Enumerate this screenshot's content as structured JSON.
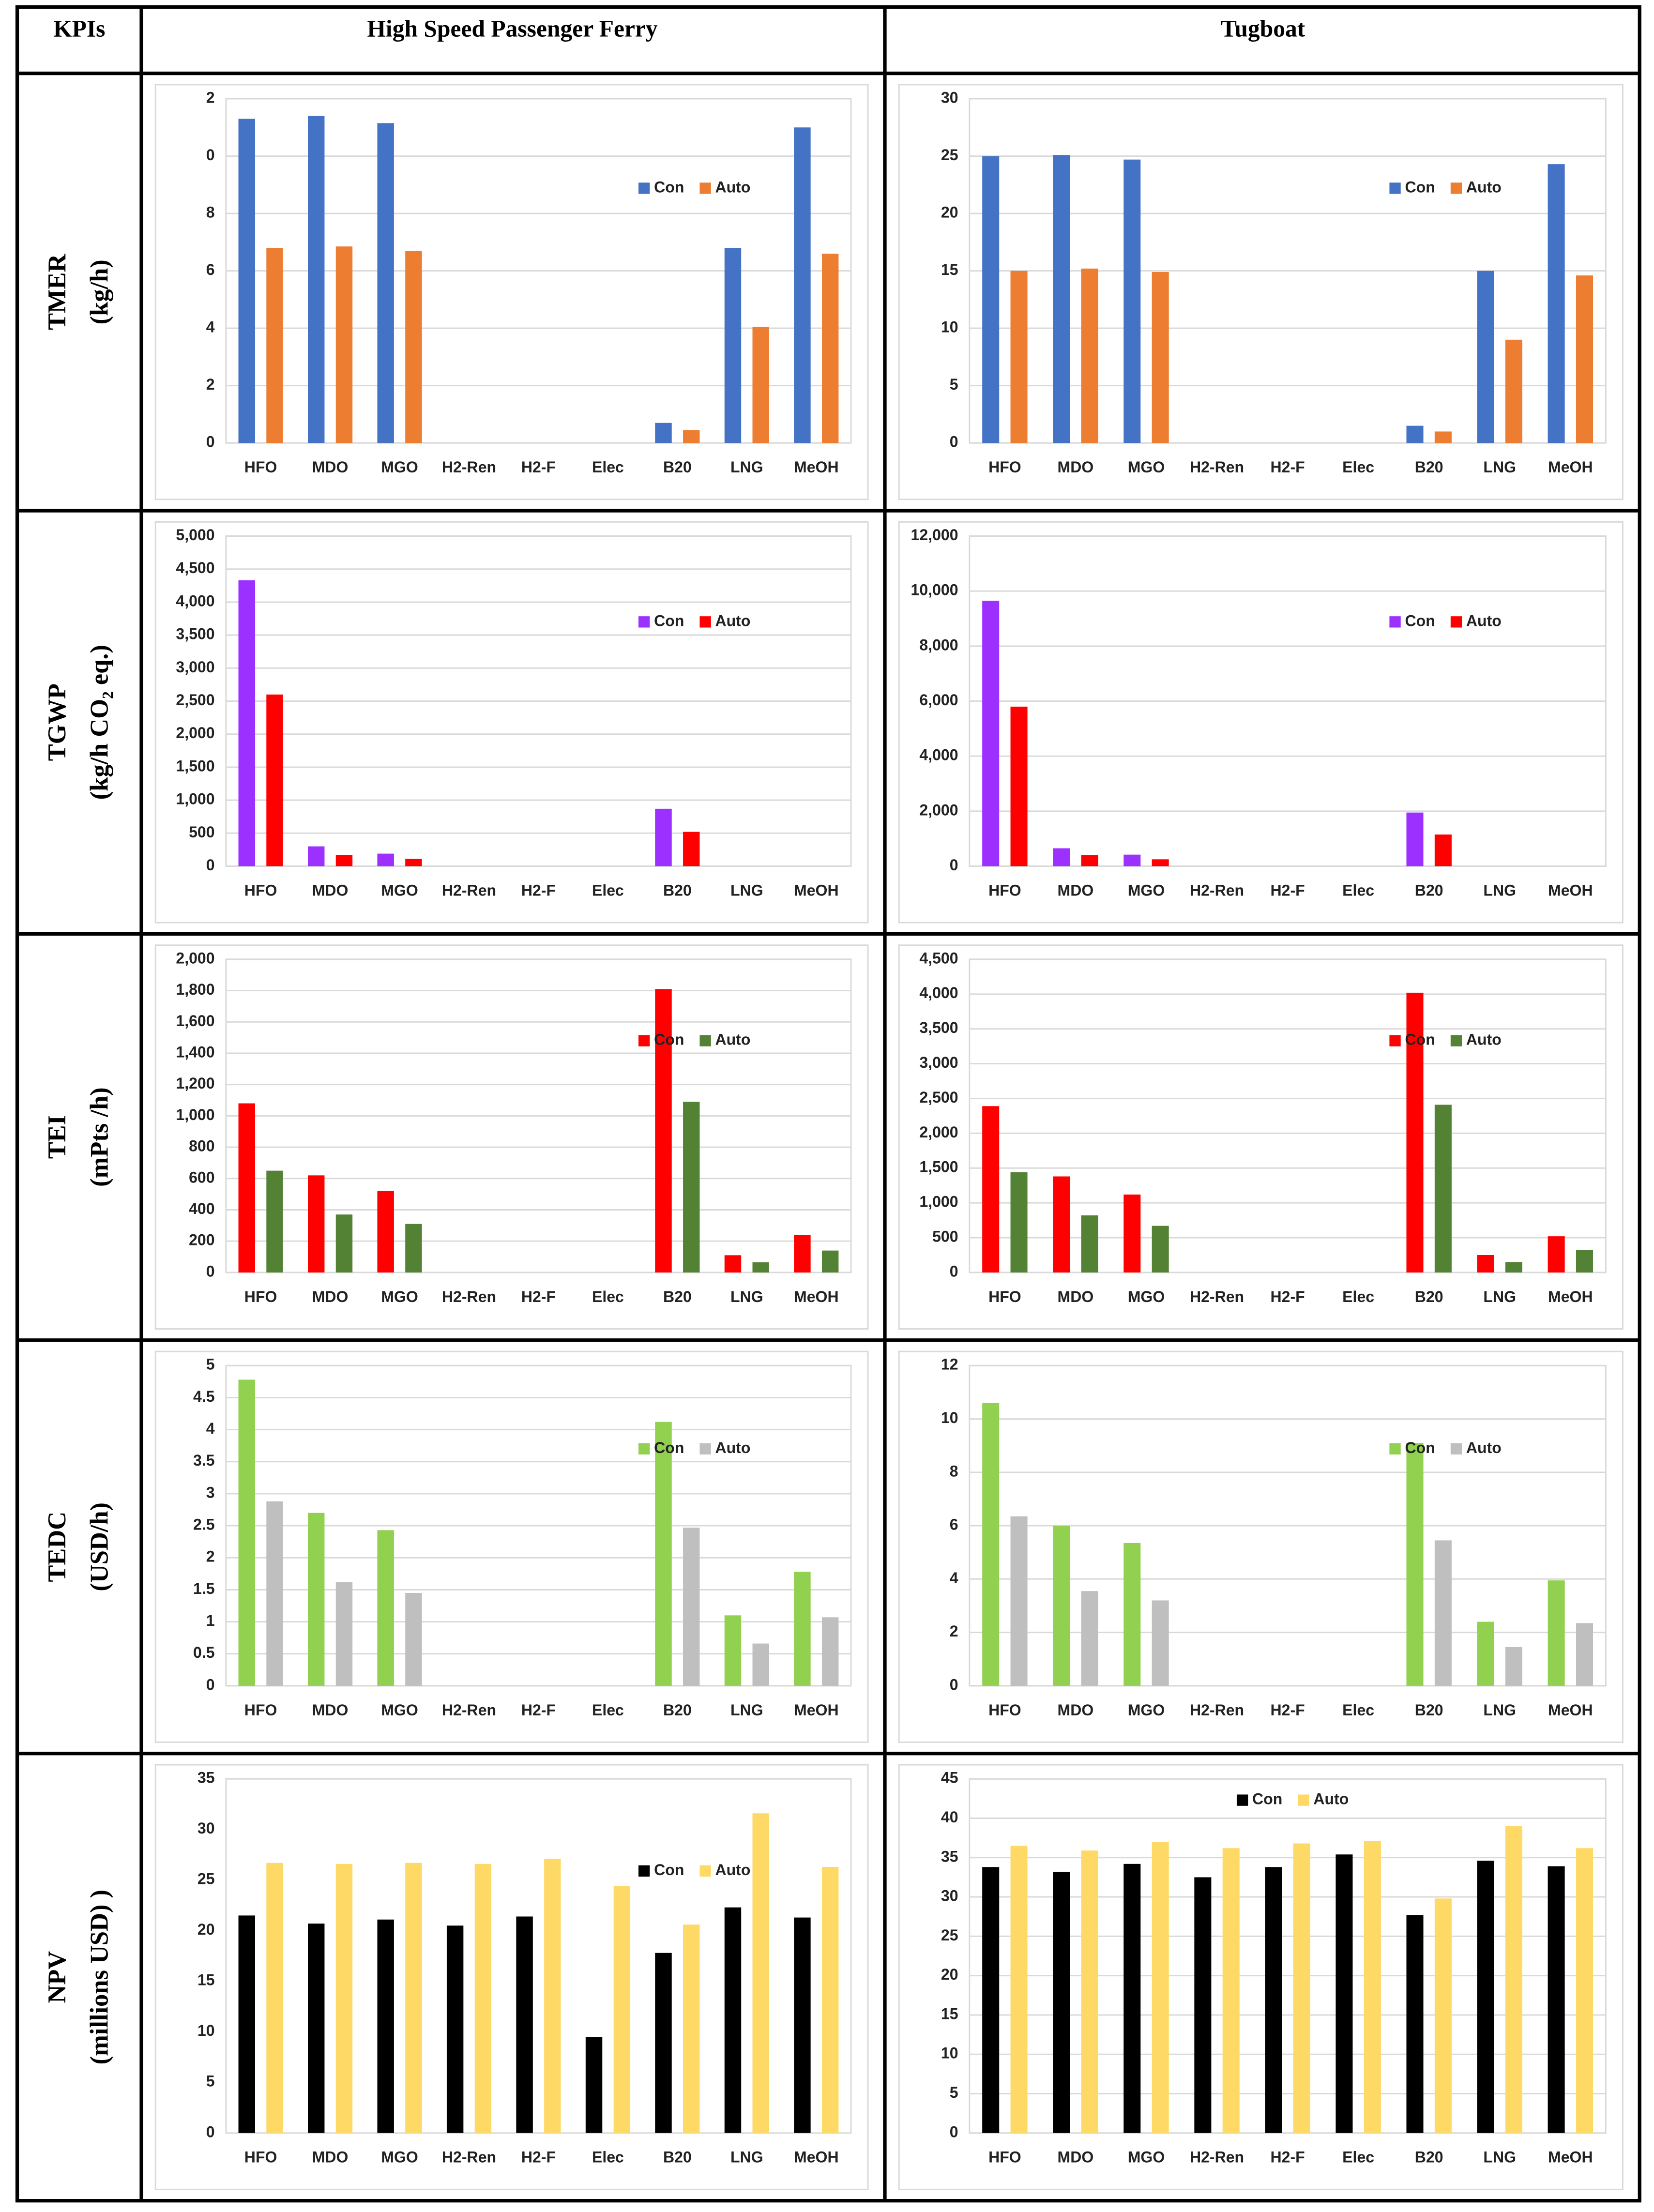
{
  "table": {
    "header": [
      "KPIs",
      "High Speed Passenger Ferry",
      "Tugboat"
    ],
    "rows": [
      {
        "kpi": "TMER",
        "unit": "(kg/h)"
      },
      {
        "kpi": "TGWP",
        "unit": "(kg/h CO₂ eq.)"
      },
      {
        "kpi": "TEI",
        "unit": "(mPts /h)"
      },
      {
        "kpi": "TEDC",
        "unit": "(USD/h)"
      },
      {
        "kpi": "NPV",
        "unit": "(millions USD) )"
      }
    ]
  },
  "chart_data": [
    {
      "type": "bar",
      "categories": [
        "HFO",
        "MDO",
        "MGO",
        "H2-Ren",
        "H2-F",
        "Elec",
        "B20",
        "LNG",
        "MeOH"
      ],
      "series": [
        {
          "name": "Con",
          "color": "#4472c4",
          "values": [
            11.3,
            11.4,
            11.15,
            0,
            0,
            0,
            0.7,
            6.8,
            11.0
          ]
        },
        {
          "name": "Auto",
          "color": "#ed7d31",
          "values": [
            6.8,
            6.85,
            6.7,
            0,
            0,
            0,
            0.45,
            4.05,
            6.6
          ]
        }
      ],
      "ylim": [
        0,
        12
      ],
      "yticks": [
        0,
        2,
        4,
        6,
        8,
        {
          "value": 10,
          "label": "0"
        },
        {
          "value": 12,
          "label": "2"
        }
      ],
      "grid": true,
      "legend": "upper right"
    },
    {
      "type": "bar",
      "categories": [
        "HFO",
        "MDO",
        "MGO",
        "H2-Ren",
        "H2-F",
        "Elec",
        "B20",
        "LNG",
        "MeOH"
      ],
      "series": [
        {
          "name": "Con",
          "color": "#4472c4",
          "values": [
            25,
            25.1,
            24.7,
            0,
            0,
            0,
            1.5,
            15,
            24.3
          ]
        },
        {
          "name": "Auto",
          "color": "#ed7d31",
          "values": [
            15,
            15.2,
            14.9,
            0,
            0,
            0,
            1.0,
            9,
            14.6
          ]
        }
      ],
      "ylim": [
        0,
        30
      ],
      "yticks": [
        0,
        5,
        10,
        15,
        20,
        25,
        30
      ],
      "grid": true,
      "legend": "upper right"
    },
    {
      "type": "bar",
      "categories": [
        "HFO",
        "MDO",
        "MGO",
        "H2-Ren",
        "H2-F",
        "Elec",
        "B20",
        "LNG",
        "MeOH"
      ],
      "series": [
        {
          "name": "Con",
          "color": "#9b30ff",
          "values": [
            4330,
            300,
            190,
            0,
            0,
            0,
            870,
            0,
            0
          ]
        },
        {
          "name": "Auto",
          "color": "#ff0000",
          "values": [
            2600,
            170,
            110,
            0,
            0,
            0,
            520,
            0,
            0
          ]
        }
      ],
      "ylim": [
        0,
        5000
      ],
      "yticks": [
        0,
        500,
        {
          "value": 1000,
          "label": "1,000"
        },
        {
          "value": 1500,
          "label": "1,500"
        },
        {
          "value": 2000,
          "label": "2,000"
        },
        {
          "value": 2500,
          "label": "2,500"
        },
        {
          "value": 3000,
          "label": "3,000"
        },
        {
          "value": 3500,
          "label": "3,500"
        },
        {
          "value": 4000,
          "label": "4,000"
        },
        {
          "value": 4500,
          "label": "4,500"
        },
        {
          "value": 5000,
          "label": "5,000"
        }
      ],
      "grid": true,
      "legend": "upper right"
    },
    {
      "type": "bar",
      "categories": [
        "HFO",
        "MDO",
        "MGO",
        "H2-Ren",
        "H2-F",
        "Elec",
        "B20",
        "LNG",
        "MeOH"
      ],
      "series": [
        {
          "name": "Con",
          "color": "#9b30ff",
          "values": [
            9650,
            650,
            420,
            0,
            0,
            0,
            1950,
            0,
            0
          ]
        },
        {
          "name": "Auto",
          "color": "#ff0000",
          "values": [
            5800,
            400,
            250,
            0,
            0,
            0,
            1150,
            0,
            0
          ]
        }
      ],
      "ylim": [
        0,
        12000
      ],
      "yticks": [
        0,
        {
          "value": 2000,
          "label": "2,000"
        },
        {
          "value": 4000,
          "label": "4,000"
        },
        {
          "value": 6000,
          "label": "6,000"
        },
        {
          "value": 8000,
          "label": "8,000"
        },
        {
          "value": 10000,
          "label": "10,000"
        },
        {
          "value": 12000,
          "label": "12,000"
        }
      ],
      "grid": true,
      "legend": "upper right"
    },
    {
      "type": "bar",
      "categories": [
        "HFO",
        "MDO",
        "MGO",
        "H2-Ren",
        "H2-F",
        "Elec",
        "B20",
        "LNG",
        "MeOH"
      ],
      "series": [
        {
          "name": "Con",
          "color": "#ff0000",
          "values": [
            1080,
            620,
            520,
            0,
            0,
            0,
            1810,
            110,
            240
          ]
        },
        {
          "name": "Auto",
          "color": "#548235",
          "values": [
            650,
            370,
            310,
            0,
            0,
            0,
            1090,
            65,
            140
          ]
        }
      ],
      "ylim": [
        0,
        2000
      ],
      "yticks": [
        0,
        200,
        400,
        600,
        800,
        {
          "value": 1000,
          "label": "1,000"
        },
        {
          "value": 1200,
          "label": "1,200"
        },
        {
          "value": 1400,
          "label": "1,400"
        },
        {
          "value": 1600,
          "label": "1,600"
        },
        {
          "value": 1800,
          "label": "1,800"
        },
        {
          "value": 2000,
          "label": "2,000"
        }
      ],
      "grid": true,
      "legend": "upper right"
    },
    {
      "type": "bar",
      "categories": [
        "HFO",
        "MDO",
        "MGO",
        "H2-Ren",
        "H2-F",
        "Elec",
        "B20",
        "LNG",
        "MeOH"
      ],
      "series": [
        {
          "name": "Con",
          "color": "#ff0000",
          "values": [
            2390,
            1380,
            1120,
            0,
            0,
            0,
            4020,
            250,
            520
          ]
        },
        {
          "name": "Auto",
          "color": "#548235",
          "values": [
            1440,
            820,
            670,
            0,
            0,
            0,
            2410,
            150,
            320
          ]
        }
      ],
      "ylim": [
        0,
        4500
      ],
      "yticks": [
        0,
        500,
        {
          "value": 1000,
          "label": "1,000"
        },
        {
          "value": 1500,
          "label": "1,500"
        },
        {
          "value": 2000,
          "label": "2,000"
        },
        {
          "value": 2500,
          "label": "2,500"
        },
        {
          "value": 3000,
          "label": "3,000"
        },
        {
          "value": 3500,
          "label": "3,500"
        },
        {
          "value": 4000,
          "label": "4,000"
        },
        {
          "value": 4500,
          "label": "4,500"
        }
      ],
      "grid": true,
      "legend": "upper right"
    },
    {
      "type": "bar",
      "categories": [
        "HFO",
        "MDO",
        "MGO",
        "H2-Ren",
        "H2-F",
        "Elec",
        "B20",
        "LNG",
        "MeOH"
      ],
      "series": [
        {
          "name": "Con",
          "color": "#92d050",
          "values": [
            4.78,
            2.7,
            2.43,
            0,
            0,
            0,
            4.12,
            1.1,
            1.78
          ]
        },
        {
          "name": "Auto",
          "color": "#bfbfbf",
          "values": [
            2.88,
            1.62,
            1.45,
            0,
            0,
            0,
            2.47,
            0.66,
            1.07
          ]
        }
      ],
      "ylim": [
        0,
        5
      ],
      "yticks": [
        0,
        0.5,
        1,
        1.5,
        2,
        2.5,
        3,
        3.5,
        4,
        4.5,
        5
      ],
      "grid": true,
      "legend": "upper right"
    },
    {
      "type": "bar",
      "categories": [
        "HFO",
        "MDO",
        "MGO",
        "H2-Ren",
        "H2-F",
        "Elec",
        "B20",
        "LNG",
        "MeOH"
      ],
      "series": [
        {
          "name": "Con",
          "color": "#92d050",
          "values": [
            10.6,
            6.0,
            5.35,
            0,
            0,
            0,
            9.1,
            2.4,
            3.95
          ]
        },
        {
          "name": "Auto",
          "color": "#bfbfbf",
          "values": [
            6.35,
            3.55,
            3.2,
            0,
            0,
            0,
            5.45,
            1.45,
            2.35
          ]
        }
      ],
      "ylim": [
        0,
        12
      ],
      "yticks": [
        0,
        2,
        4,
        6,
        8,
        10,
        12
      ],
      "grid": true,
      "legend": "upper right"
    },
    {
      "type": "bar",
      "categories": [
        "HFO",
        "MDO",
        "MGO",
        "H2-Ren",
        "H2-F",
        "Elec",
        "B20",
        "LNG",
        "MeOH"
      ],
      "series": [
        {
          "name": "Con",
          "color": "#000000",
          "values": [
            21.5,
            20.7,
            21.1,
            20.5,
            21.4,
            9.5,
            17.8,
            22.3,
            21.3
          ]
        },
        {
          "name": "Auto",
          "color": "#ffd966",
          "values": [
            26.7,
            26.6,
            26.7,
            26.6,
            27.1,
            24.4,
            20.6,
            31.6,
            26.3
          ]
        }
      ],
      "ylim": [
        0,
        35
      ],
      "yticks": [
        0,
        5,
        10,
        15,
        20,
        25,
        30,
        35
      ],
      "grid": false,
      "legend": "upper right"
    },
    {
      "type": "bar",
      "categories": [
        "HFO",
        "MDO",
        "MGO",
        "H2-Ren",
        "H2-F",
        "Elec",
        "B20",
        "LNG",
        "MeOH"
      ],
      "series": [
        {
          "name": "Con",
          "color": "#000000",
          "values": [
            33.8,
            33.2,
            34.2,
            32.5,
            33.8,
            35.4,
            27.7,
            34.6,
            33.9
          ]
        },
        {
          "name": "Auto",
          "color": "#ffd966",
          "values": [
            36.5,
            35.9,
            37.0,
            36.2,
            36.8,
            37.1,
            29.8,
            39.0,
            36.2
          ]
        }
      ],
      "ylim": [
        0,
        45
      ],
      "yticks": [
        0,
        5,
        10,
        15,
        20,
        25,
        30,
        35,
        40,
        45
      ],
      "grid": true,
      "legend": "upper center"
    }
  ]
}
